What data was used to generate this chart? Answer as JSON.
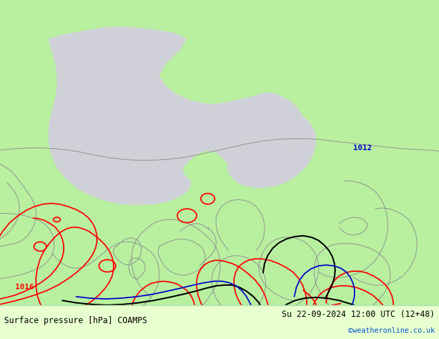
{
  "title_left": "Surface pressure [hPa] COAMPS",
  "title_right": "Su 22-09-2024 12:00 UTC (12+48)",
  "watermark": "©weatheronline.co.uk",
  "bg_green": "#b8f0a0",
  "sea_gray": "#d0d0d8",
  "figsize": [
    6.34,
    4.9
  ],
  "dpi": 100,
  "bottom_bar_color": "#e8ffd0",
  "text_color": "#000000",
  "watermark_color": "#0055cc",
  "coast_color": "#909090",
  "red": "#ff0000",
  "blue": "#0000cc",
  "black": "#000000"
}
